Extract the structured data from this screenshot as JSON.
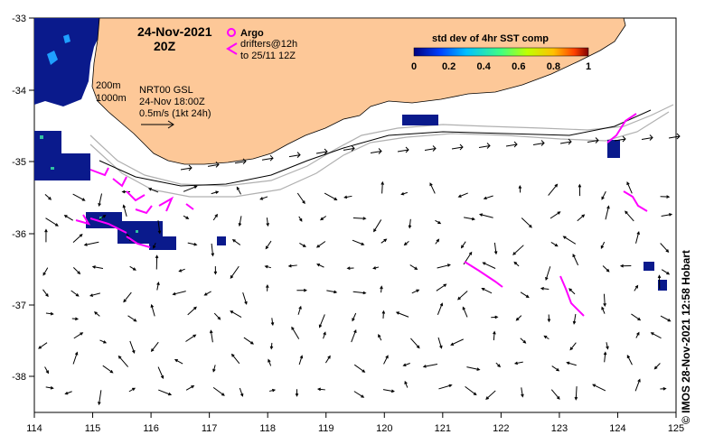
{
  "header": {
    "date": "24-Nov-2021",
    "time": "20Z"
  },
  "legend": {
    "argo_label": "Argo",
    "drifters_label": "drifters@12h",
    "drifters_to": "to 25/11 12Z"
  },
  "model": {
    "contour_200": "200m",
    "contour_1000": "1000m",
    "product": "NRT00 GSL",
    "valid": "24-Nov 18:00Z",
    "scale": "0.5m/s (1kt 24h)"
  },
  "colorbar": {
    "title": "std dev of 4hr SST comp",
    "ticks": [
      "0",
      "0.2",
      "0.4",
      "0.6",
      "0.8",
      "1"
    ],
    "colors": [
      "#00007f",
      "#0040ff",
      "#00c0ff",
      "#40ff80",
      "#c0ff00",
      "#ffc000",
      "#ff4000",
      "#800000"
    ]
  },
  "axes": {
    "x_ticks": [
      "114",
      "115",
      "116",
      "117",
      "118",
      "119",
      "120",
      "121",
      "122",
      "123",
      "124",
      "125"
    ],
    "y_ticks": [
      "-33",
      "-34",
      "-35",
      "-36",
      "-37",
      "-38"
    ]
  },
  "credit": "© IMOS 28-Nov-2021 12:58 Hobart",
  "colors": {
    "land": "#fdc898",
    "drifters": "#ff00ff",
    "sst_blue": "#0a1a8c"
  }
}
